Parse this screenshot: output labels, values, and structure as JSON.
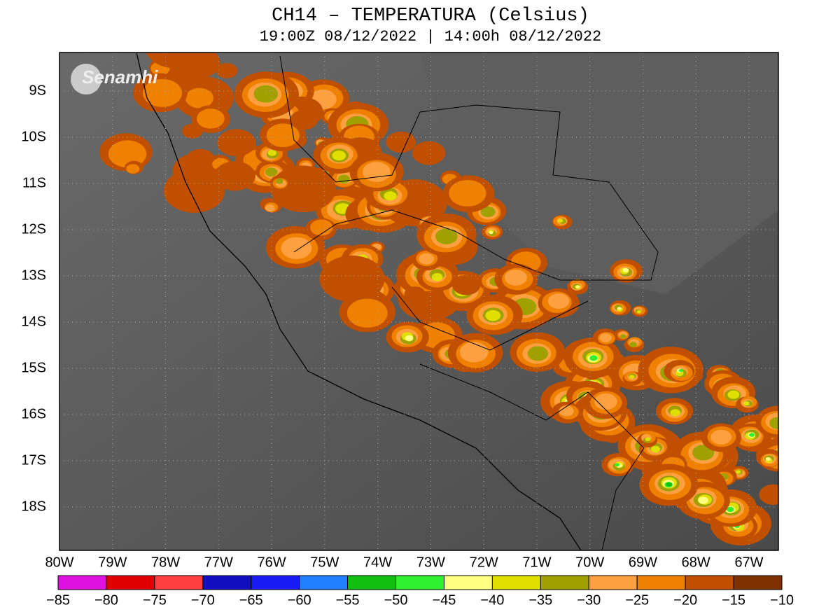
{
  "title": "CH14 – TEMPERATURA (Celsius)",
  "subtitle": "19:00Z 08/12/2022 | 14:00h 08/12/2022",
  "logo": "Senamhi",
  "latitude_labels": [
    "9S",
    "10S",
    "11S",
    "12S",
    "13S",
    "14S",
    "15S",
    "16S",
    "17S",
    "18S"
  ],
  "longitude_labels": [
    "80W",
    "79W",
    "78W",
    "77W",
    "76W",
    "75W",
    "74W",
    "73W",
    "72W",
    "71W",
    "70W",
    "69W",
    "68W",
    "67W"
  ],
  "colorbar": {
    "colors": [
      "#e010e0",
      "#e00000",
      "#ff4040",
      "#1010c0",
      "#1a1af5",
      "#2080ff",
      "#10c010",
      "#30f030",
      "#ffff80",
      "#e0e000",
      "#a0a000",
      "#ffa040",
      "#f08000",
      "#c05000",
      "#803000"
    ],
    "labels": [
      "−85",
      "−80",
      "−75",
      "−70",
      "−65",
      "−60",
      "−55",
      "−50",
      "−45",
      "−40",
      "−35",
      "−30",
      "−25",
      "−20",
      "−15",
      "−10"
    ]
  }
}
